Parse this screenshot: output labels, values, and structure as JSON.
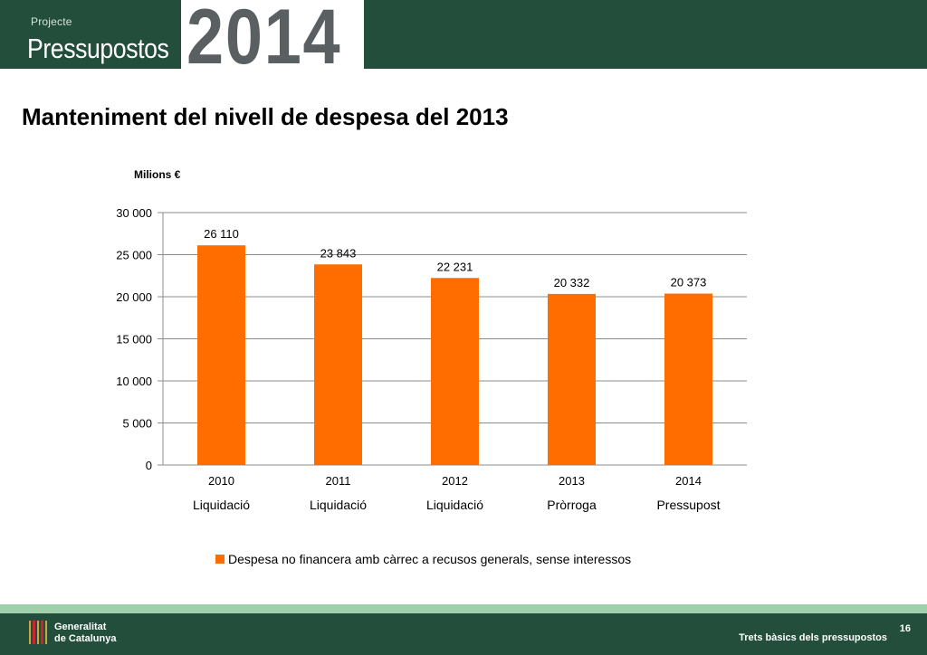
{
  "header": {
    "kicker": "Projecte",
    "title": "Pressupostos",
    "year": "2014"
  },
  "slide": {
    "title": "Manteniment del nivell de despesa del 2013"
  },
  "chart_data": {
    "type": "bar",
    "categories": [
      "2010",
      "2011",
      "2012",
      "2013",
      "2014"
    ],
    "category_sublabels": [
      "Liquidació",
      "Liquidació",
      "Liquidació",
      "Pròrroga",
      "Pressupost"
    ],
    "series": [
      {
        "name": "Despesa no financera amb càrrec a recusos generals, sense interessos",
        "values": [
          26110,
          23843,
          22231,
          20332,
          20373
        ],
        "value_labels": [
          "26 110",
          "23 843",
          "22 231",
          "20 332",
          "20 373"
        ],
        "color": "#ff6d00"
      }
    ],
    "unit_label": "Milions €",
    "ylim": [
      0,
      30000
    ],
    "yticks": [
      0,
      5000,
      10000,
      15000,
      20000,
      25000,
      30000
    ],
    "ytick_labels": [
      "0",
      "5 000",
      "10 000",
      "15 000",
      "20 000",
      "25 000",
      "30 000"
    ],
    "grid": true,
    "legend_position": "bottom",
    "gridline_color": "#8c8c8c"
  },
  "footer": {
    "org_line1": "Generalitat",
    "org_line2": "de Catalunya",
    "caption": "Trets bàsics dels pressupostos",
    "page_number": "16"
  },
  "colors": {
    "header_bg": "#234e3b",
    "footer_band": "#9fcfab",
    "bar": "#ff6d00"
  }
}
